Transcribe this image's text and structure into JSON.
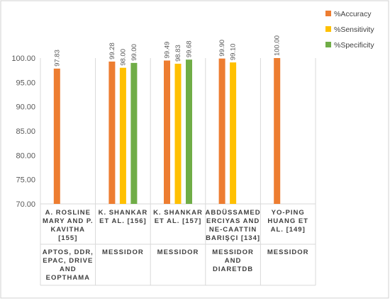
{
  "chart_data": {
    "type": "bar",
    "categories": [
      {
        "author": [
          "A. ROSLINE",
          "MARY AND P.",
          "KAVITHA",
          "[155]"
        ],
        "dataset": [
          "APTOS, DDR,",
          "EPAC, DRIVE",
          "AND",
          "EOPTHAMA"
        ]
      },
      {
        "author": [
          "K. SHANKAR",
          "ET AL. [156]"
        ],
        "dataset": [
          "MESSIDOR"
        ]
      },
      {
        "author": [
          "K. SHANKAR",
          "ET AL. [157]"
        ],
        "dataset": [
          "MESSIDOR"
        ]
      },
      {
        "author": [
          "ABDÜSSAMED",
          "ERCIYAS AND",
          "NE-CAATTIN",
          "BARIŞÇI [134]"
        ],
        "dataset": [
          "MESSIDOR",
          "AND",
          "DIARETDB"
        ]
      },
      {
        "author": [
          "YO-PING",
          "HUANG ET",
          "AL. [149]"
        ],
        "dataset": [
          "MESSIDOR"
        ]
      }
    ],
    "series": [
      {
        "name": "%Accuracy",
        "color": "#ED7D31",
        "values": [
          97.83,
          99.28,
          99.49,
          99.9,
          100.0
        ],
        "labels": [
          "97.83",
          "99.28",
          "99.49",
          "99.90",
          "100.00"
        ]
      },
      {
        "name": "%Sensitivity",
        "color": "#FFC000",
        "values": [
          null,
          98.0,
          98.83,
          99.1,
          null
        ],
        "labels": [
          "",
          "98.00",
          "98.83",
          "99.10",
          ""
        ]
      },
      {
        "name": "%Specificity",
        "color": "#70AD47",
        "values": [
          null,
          99.0,
          99.68,
          null,
          null
        ],
        "labels": [
          "",
          "99.00",
          "99.68",
          "",
          ""
        ]
      }
    ],
    "yticks": [
      "70.00",
      "75.00",
      "80.00",
      "85.00",
      "90.00",
      "95.00",
      "100.00"
    ],
    "ylim": [
      70,
      100
    ],
    "legend": "top-right",
    "grid": false
  }
}
